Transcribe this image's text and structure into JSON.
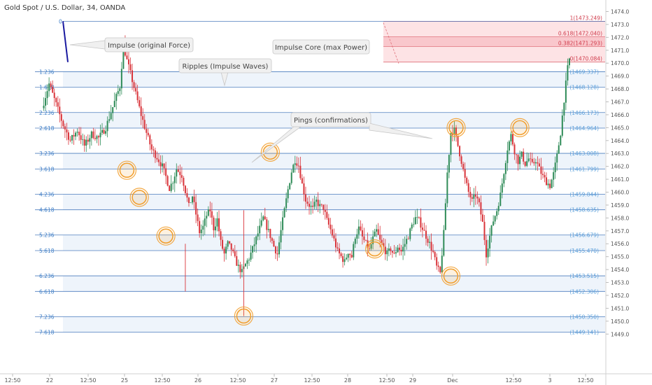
{
  "header": {
    "title": "Gold Spot / U.S. Dollar, 34, OANDA"
  },
  "colors": {
    "fib_line": "#2f67b3",
    "fib_label": "#3e7fc8",
    "fib_price": "#5aa0dc",
    "ext_line": "#e0707a",
    "ext_label": "#d03c4c",
    "ext_fill": "#fde3e5",
    "ext_core": "#f9c7cc",
    "band_fill": "#eef4fb",
    "bull": "#2e8b57",
    "bear": "#d9343a",
    "ping": "#f2a030",
    "impulse": "#1a1aa0",
    "callout_bg": "#f0f0f0",
    "callout_border": "#c8c8c8"
  },
  "chart_data": {
    "type": "candlestick",
    "title": "Gold Spot / U.S. Dollar, 34, OANDA",
    "y_axis": {
      "range": [
        1448.3,
        1474.9
      ],
      "ticks": [
        1449.0,
        1450.0,
        1451.0,
        1452.0,
        1453.0,
        1454.0,
        1455.0,
        1456.0,
        1457.0,
        1458.0,
        1459.0,
        1460.0,
        1461.0,
        1462.0,
        1463.0,
        1464.0,
        1465.0,
        1466.0,
        1467.0,
        1468.0,
        1469.0,
        1470.0,
        1471.0,
        1472.0,
        1473.0,
        1474.0
      ]
    },
    "x_axis": {
      "labels": [
        "12:50",
        "22",
        "12:50",
        "25",
        "12:50",
        "26",
        "12:50",
        "27",
        "12:50",
        "28",
        "12:50",
        "29",
        "Dec",
        "12:50",
        "3",
        "12:50"
      ]
    },
    "fib_levels": [
      {
        "ratio": "0",
        "price": ""
      },
      {
        "ratio": "1.236",
        "price": "(1469.337)"
      },
      {
        "ratio": "1.618",
        "price": "(1468.128)"
      },
      {
        "ratio": "2.236",
        "price": "(1466.173)"
      },
      {
        "ratio": "2.618",
        "price": "(1464.964)"
      },
      {
        "ratio": "3.236",
        "price": "(1463.008)"
      },
      {
        "ratio": "3.618",
        "price": "(1461.799)"
      },
      {
        "ratio": "4.236",
        "price": "(1459.844)"
      },
      {
        "ratio": "4.618",
        "price": "(1458.635)"
      },
      {
        "ratio": "5.236",
        "price": "(1456.679)"
      },
      {
        "ratio": "5.618",
        "price": "(1455.470)"
      },
      {
        "ratio": "6.236",
        "price": "(1453.515)"
      },
      {
        "ratio": "6.618",
        "price": "(1452.306)"
      },
      {
        "ratio": "7.236",
        "price": "(1450.350)"
      },
      {
        "ratio": "7.618",
        "price": "(1449.141)"
      }
    ],
    "extension_levels": [
      {
        "ratio": "1",
        "price": "(1473.249)"
      },
      {
        "ratio": "0.618",
        "price": "(1472.040)"
      },
      {
        "ratio": "0.382",
        "price": "(1471.293)"
      },
      {
        "ratio": "0",
        "price": "(1470.084)"
      }
    ],
    "annotations": [
      "Impulse (original Force)",
      "Ripples (Impulse Waves)",
      "Impulse Core (max Power)",
      "Pings (confirmations)"
    ],
    "price_path": [
      [
        0,
        1466.5
      ],
      [
        4,
        1468.4
      ],
      [
        8,
        1466.8
      ],
      [
        12,
        1465.2
      ],
      [
        16,
        1464.0
      ],
      [
        20,
        1464.8
      ],
      [
        24,
        1463.6
      ],
      [
        28,
        1464.5
      ],
      [
        32,
        1464.2
      ],
      [
        36,
        1465.0
      ],
      [
        40,
        1466.6
      ],
      [
        44,
        1468.2
      ],
      [
        46,
        1471.4
      ],
      [
        48,
        1470.2
      ],
      [
        50,
        1469.2
      ],
      [
        53,
        1467.6
      ],
      [
        56,
        1466.0
      ],
      [
        59,
        1464.6
      ],
      [
        62,
        1463.3
      ],
      [
        65,
        1462.7
      ],
      [
        68,
        1462.0
      ],
      [
        70,
        1461.2
      ],
      [
        72,
        1460.3
      ],
      [
        74,
        1460.9
      ],
      [
        76,
        1461.8
      ],
      [
        79,
        1461.3
      ],
      [
        81,
        1460.1
      ],
      [
        83,
        1458.9
      ],
      [
        85,
        1459.7
      ],
      [
        87,
        1458.3
      ],
      [
        89,
        1456.9
      ],
      [
        91,
        1457.3
      ],
      [
        93,
        1458.2
      ],
      [
        95,
        1458.6
      ],
      [
        97,
        1457.2
      ],
      [
        99,
        1457.9
      ],
      [
        101,
        1456.1
      ],
      [
        103,
        1455.2
      ],
      [
        105,
        1456.0
      ],
      [
        107,
        1455.6
      ],
      [
        109,
        1454.8
      ],
      [
        111,
        1454.2
      ],
      [
        113,
        1453.8
      ],
      [
        115,
        1454.4
      ],
      [
        117,
        1454.9
      ],
      [
        119,
        1455.6
      ],
      [
        121,
        1456.4
      ],
      [
        123,
        1457.2
      ],
      [
        125,
        1458.0
      ],
      [
        127,
        1457.3
      ],
      [
        129,
        1456.6
      ],
      [
        131,
        1455.8
      ],
      [
        133,
        1455.2
      ],
      [
        135,
        1457.0
      ],
      [
        137,
        1458.6
      ],
      [
        139,
        1460.2
      ],
      [
        141,
        1461.6
      ],
      [
        143,
        1462.5
      ],
      [
        145,
        1462.1
      ],
      [
        147,
        1460.6
      ],
      [
        149,
        1459.4
      ],
      [
        151,
        1459.0
      ],
      [
        153,
        1458.7
      ],
      [
        155,
        1459.3
      ],
      [
        157,
        1458.9
      ],
      [
        159,
        1458.8
      ],
      [
        161,
        1457.8
      ],
      [
        163,
        1457.1
      ],
      [
        165,
        1456.3
      ],
      [
        167,
        1455.4
      ],
      [
        169,
        1455.0
      ],
      [
        171,
        1454.6
      ],
      [
        173,
        1455.4
      ],
      [
        175,
        1455.0
      ],
      [
        177,
        1456.6
      ],
      [
        179,
        1457.2
      ],
      [
        181,
        1456.5
      ],
      [
        183,
        1456.0
      ],
      [
        185,
        1455.5
      ],
      [
        187,
        1456.4
      ],
      [
        189,
        1457.0
      ],
      [
        191,
        1456.2
      ],
      [
        193,
        1455.7
      ],
      [
        195,
        1455.2
      ],
      [
        197,
        1455.6
      ],
      [
        199,
        1455.1
      ],
      [
        201,
        1455.8
      ],
      [
        203,
        1455.4
      ],
      [
        205,
        1456.0
      ],
      [
        207,
        1456.6
      ],
      [
        209,
        1457.4
      ],
      [
        211,
        1458.0
      ],
      [
        213,
        1457.8
      ],
      [
        215,
        1457.2
      ],
      [
        217,
        1456.6
      ],
      [
        219,
        1456.0
      ],
      [
        221,
        1455.3
      ],
      [
        223,
        1454.2
      ],
      [
        225,
        1453.7
      ],
      [
        227,
        1456.8
      ],
      [
        229,
        1461.5
      ],
      [
        231,
        1464.6
      ],
      [
        233,
        1464.8
      ],
      [
        235,
        1463.6
      ],
      [
        237,
        1462.4
      ],
      [
        239,
        1461.0
      ],
      [
        241,
        1460.0
      ],
      [
        243,
        1459.3
      ],
      [
        245,
        1459.8
      ],
      [
        247,
        1459.0
      ],
      [
        249,
        1457.6
      ],
      [
        251,
        1455.2
      ],
      [
        253,
        1456.6
      ],
      [
        255,
        1457.8
      ],
      [
        257,
        1458.6
      ],
      [
        259,
        1459.8
      ],
      [
        261,
        1461.6
      ],
      [
        263,
        1463.4
      ],
      [
        265,
        1464.4
      ],
      [
        267,
        1463.2
      ],
      [
        269,
        1462.4
      ],
      [
        271,
        1462.9
      ],
      [
        273,
        1462.2
      ],
      [
        275,
        1462.6
      ],
      [
        277,
        1462.1
      ],
      [
        279,
        1462.5
      ],
      [
        281,
        1461.8
      ],
      [
        283,
        1461.2
      ],
      [
        285,
        1460.8
      ],
      [
        287,
        1460.5
      ],
      [
        289,
        1461.4
      ],
      [
        291,
        1462.8
      ],
      [
        293,
        1464.6
      ],
      [
        295,
        1467.2
      ],
      [
        297,
        1469.6
      ],
      [
        298,
        1470.3
      ]
    ],
    "pings": [
      {
        "x": 48,
        "price": 1461.7
      },
      {
        "x": 55,
        "price": 1459.6
      },
      {
        "x": 70,
        "price": 1456.6
      },
      {
        "x": 129,
        "price": 1463.1
      },
      {
        "x": 114,
        "price": 1450.4
      },
      {
        "x": 188,
        "price": 1455.6
      },
      {
        "x": 231,
        "price": 1453.5
      },
      {
        "x": 234,
        "price": 1465.0
      },
      {
        "x": 270,
        "price": 1465.0
      }
    ]
  }
}
